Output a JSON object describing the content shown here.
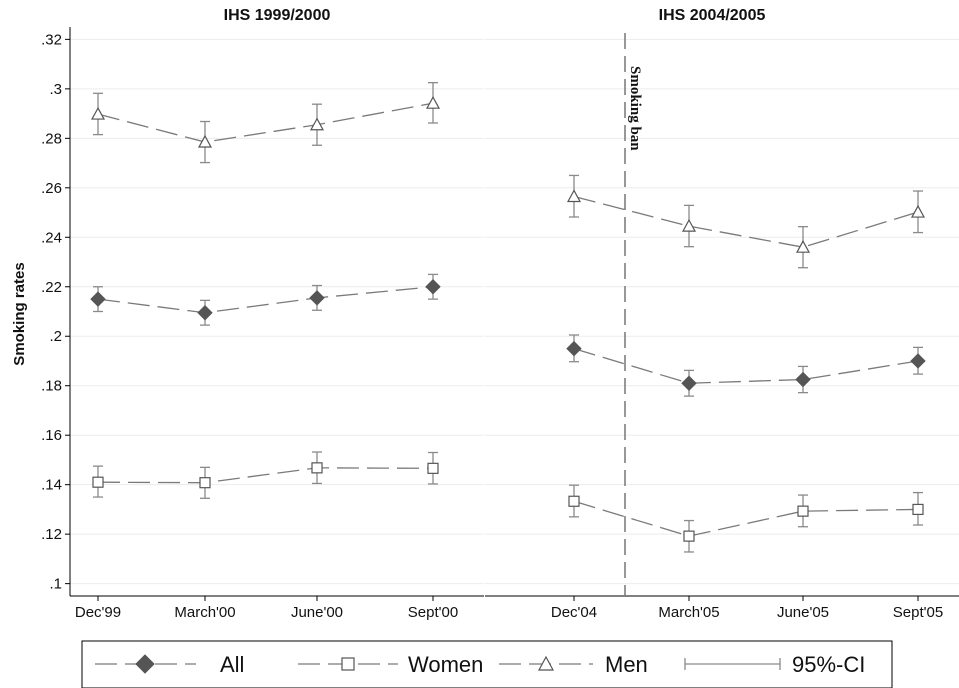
{
  "chart_data": {
    "type": "line",
    "ylabel": "Smoking rates",
    "ylim": [
      0.095,
      0.325
    ],
    "yticks": [
      ".1",
      ".12",
      ".14",
      ".16",
      ".18",
      ".2",
      ".22",
      ".24",
      ".26",
      ".28",
      ".3",
      ".32"
    ],
    "grid": true,
    "legend_position": "bottom",
    "panels": [
      {
        "title": "IHS 1999/2000",
        "categories": [
          "Dec'99",
          "March'00",
          "June'00",
          "Sept'00"
        ],
        "series": [
          {
            "name": "All",
            "values": [
              0.215,
              0.2095,
              0.2155,
              0.22
            ],
            "ci_low": [
              0.21,
              0.2045,
              0.2105,
              0.215
            ],
            "ci_high": [
              0.22,
              0.2145,
              0.2205,
              0.225
            ]
          },
          {
            "name": "Women",
            "values": [
              0.141,
              0.1408,
              0.1468,
              0.1466
            ],
            "ci_low": [
              0.135,
              0.1345,
              0.1405,
              0.1403
            ],
            "ci_high": [
              0.1475,
              0.147,
              0.1532,
              0.153
            ]
          },
          {
            "name": "Men",
            "values": [
              0.2898,
              0.2785,
              0.2855,
              0.2942
            ],
            "ci_low": [
              0.2815,
              0.2702,
              0.2772,
              0.2862
            ],
            "ci_high": [
              0.2982,
              0.2868,
              0.2938,
              0.3025
            ]
          }
        ]
      },
      {
        "title": "IHS 2004/2005",
        "categories": [
          "Dec'04",
          "March'05",
          "June'05",
          "Sept'05"
        ],
        "annotation": "Smoking ban",
        "series": [
          {
            "name": "All",
            "values": [
              0.195,
              0.181,
              0.1825,
              0.19
            ],
            "ci_low": [
              0.1897,
              0.1758,
              0.1772,
              0.1847
            ],
            "ci_high": [
              0.2005,
              0.1862,
              0.1878,
              0.1955
            ]
          },
          {
            "name": "Women",
            "values": [
              0.1333,
              0.1192,
              0.1293,
              0.13
            ],
            "ci_low": [
              0.127,
              0.1128,
              0.123,
              0.1237
            ],
            "ci_high": [
              0.1398,
              0.1255,
              0.1358,
              0.1368
            ]
          },
          {
            "name": "Men",
            "values": [
              0.2565,
              0.2445,
              0.236,
              0.2502
            ],
            "ci_low": [
              0.2482,
              0.2362,
              0.2277,
              0.2419
            ],
            "ci_high": [
              0.265,
              0.2529,
              0.2443,
              0.2587
            ]
          }
        ]
      }
    ],
    "legend": [
      "All",
      "Women",
      "Men",
      "95%-CI"
    ]
  }
}
